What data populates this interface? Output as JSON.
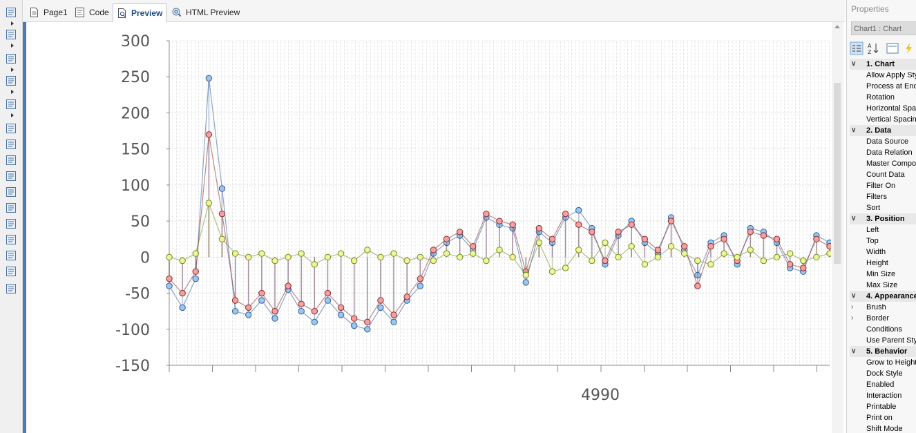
{
  "tabs": [
    {
      "label": "Page1",
      "icon": "page-icon"
    },
    {
      "label": "Code",
      "icon": "code-icon"
    },
    {
      "label": "Preview",
      "icon": "preview-icon",
      "active": true
    },
    {
      "label": "HTML Preview",
      "icon": "html-preview-icon"
    }
  ],
  "toolbox": [
    "bands-icon",
    "cross-bands-icon",
    "components-icon",
    "image-icon",
    "plugin-icon",
    "text-icon",
    "list-icon",
    "rich-text-icon",
    "rich-text-2-icon",
    "panel-icon",
    "page-footer-icon",
    "table-icon",
    "label-icon",
    "picture-icon",
    "chart-icon",
    "tools-icon"
  ],
  "properties": {
    "title": "Properties",
    "selected_component": "Chart1 : Chart",
    "rows": [
      {
        "type": "category",
        "label": "1. Chart"
      },
      {
        "label": "Allow Apply Sty"
      },
      {
        "label": "Process at End"
      },
      {
        "label": "Rotation"
      },
      {
        "label": "Horizontal Spac"
      },
      {
        "label": "Vertical Spacin"
      },
      {
        "type": "category",
        "label": "2. Data"
      },
      {
        "label": "Data Source"
      },
      {
        "label": "Data Relation"
      },
      {
        "label": "Master Compor"
      },
      {
        "label": "Count Data"
      },
      {
        "label": "Filter On"
      },
      {
        "label": "Filters"
      },
      {
        "label": "Sort"
      },
      {
        "type": "category",
        "label": "3. Position"
      },
      {
        "label": "Left"
      },
      {
        "label": "Top"
      },
      {
        "label": "Width"
      },
      {
        "label": "Height"
      },
      {
        "label": "Min Size"
      },
      {
        "label": "Max Size"
      },
      {
        "type": "category",
        "label": "4. Appearance"
      },
      {
        "label": "Brush",
        "expandable": true
      },
      {
        "label": "Border",
        "expandable": true
      },
      {
        "label": "Conditions"
      },
      {
        "label": "Use Parent Sty"
      },
      {
        "type": "category",
        "label": "5. Behavior"
      },
      {
        "label": "Grow to Height"
      },
      {
        "label": "Dock Style"
      },
      {
        "label": "Enabled"
      },
      {
        "label": "Interaction"
      },
      {
        "label": "Printable"
      },
      {
        "label": "Print on"
      },
      {
        "label": "Shift Mode"
      }
    ]
  },
  "chart_data": {
    "type": "scatter",
    "ylim": [
      -150,
      300
    ],
    "yticks": [
      300,
      250,
      200,
      150,
      100,
      50,
      0,
      -50,
      -100,
      -150
    ],
    "x_tick_label": "4990",
    "grid": "vertical-dotted",
    "colors": {
      "series_red": "#f4a0a0",
      "series_red_stroke": "#8a2a2a",
      "series_blue": "#9cc6ee",
      "series_blue_stroke": "#2f5f9a",
      "series_yellow": "#eef59a",
      "series_yellow_stroke": "#6f8a1e"
    },
    "series": [
      {
        "key": "blue",
        "x": [
          0,
          20,
          40,
          60,
          80,
          100,
          120,
          140,
          160,
          180,
          200,
          220,
          240,
          260,
          280,
          300,
          320,
          340,
          360,
          380,
          400,
          420,
          440,
          460,
          480,
          500,
          520,
          540,
          560,
          580,
          600,
          620,
          640,
          660,
          680,
          700,
          720,
          740,
          760,
          780,
          800,
          820,
          840,
          860,
          880,
          900,
          920,
          940,
          960,
          980,
          1000
        ],
        "y": [
          -40,
          -70,
          -30,
          248,
          95,
          -75,
          -80,
          -60,
          -85,
          -45,
          -75,
          -90,
          -60,
          -80,
          -95,
          -100,
          -70,
          -90,
          -60,
          -40,
          5,
          20,
          30,
          10,
          55,
          45,
          40,
          -35,
          35,
          20,
          55,
          65,
          40,
          -10,
          30,
          50,
          20,
          5,
          55,
          10,
          -25,
          20,
          30,
          -10,
          40,
          35,
          20,
          -15,
          -20,
          30,
          20
        ]
      },
      {
        "key": "red",
        "x": [
          0,
          20,
          40,
          60,
          80,
          100,
          120,
          140,
          160,
          180,
          200,
          220,
          240,
          260,
          280,
          300,
          320,
          340,
          360,
          380,
          400,
          420,
          440,
          460,
          480,
          500,
          520,
          540,
          560,
          580,
          600,
          620,
          640,
          660,
          680,
          700,
          720,
          740,
          760,
          780,
          800,
          820,
          840,
          860,
          880,
          900,
          920,
          940,
          960,
          980,
          1000
        ],
        "y": [
          -30,
          -50,
          -20,
          170,
          60,
          -60,
          -70,
          -50,
          -75,
          -40,
          -65,
          -75,
          -50,
          -70,
          -85,
          -90,
          -60,
          -80,
          -55,
          -30,
          10,
          25,
          35,
          15,
          60,
          50,
          45,
          -20,
          40,
          25,
          60,
          45,
          35,
          -5,
          35,
          45,
          25,
          10,
          50,
          15,
          -40,
          15,
          25,
          -5,
          35,
          30,
          25,
          -10,
          -15,
          25,
          15
        ]
      },
      {
        "key": "yellow",
        "x": [
          0,
          20,
          40,
          60,
          80,
          100,
          120,
          140,
          160,
          180,
          200,
          220,
          240,
          260,
          280,
          300,
          320,
          340,
          360,
          380,
          400,
          420,
          440,
          460,
          480,
          500,
          520,
          540,
          560,
          580,
          600,
          620,
          640,
          660,
          680,
          700,
          720,
          740,
          760,
          780,
          800,
          820,
          840,
          860,
          880,
          900,
          920,
          940,
          960,
          980,
          1000
        ],
        "y": [
          0,
          -5,
          5,
          75,
          25,
          5,
          0,
          5,
          -5,
          0,
          5,
          -10,
          0,
          5,
          -5,
          10,
          0,
          5,
          -5,
          0,
          -5,
          5,
          0,
          5,
          -5,
          10,
          0,
          -25,
          20,
          -20,
          -15,
          10,
          -5,
          20,
          0,
          15,
          -10,
          0,
          15,
          5,
          -5,
          -10,
          5,
          0,
          10,
          -5,
          0,
          5,
          -5,
          0,
          5
        ]
      }
    ]
  }
}
